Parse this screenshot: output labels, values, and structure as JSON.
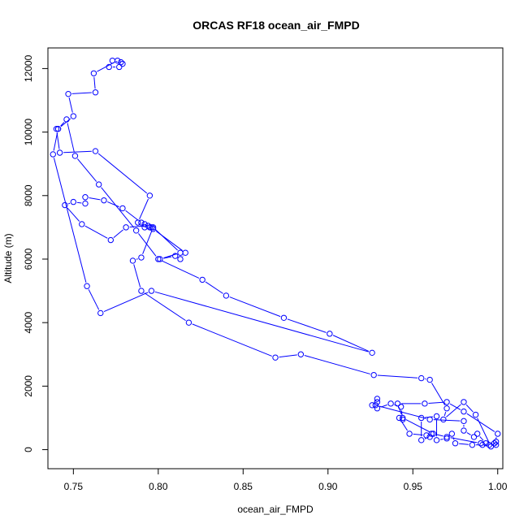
{
  "chart_data": {
    "type": "line",
    "title": "ORCAS RF18 ocean_air_FMPD",
    "xlabel": "ocean_air_FMPD",
    "ylabel": "Altitude (m)",
    "xlim": [
      0.735,
      1.003
    ],
    "ylim": [
      -600,
      12650
    ],
    "xticks": [
      0.75,
      0.8,
      0.85,
      0.9,
      0.95,
      1.0
    ],
    "xtick_labels": [
      "0.75",
      "0.80",
      "0.85",
      "0.90",
      "0.95",
      "1.00"
    ],
    "yticks": [
      0,
      2000,
      4000,
      6000,
      8000,
      10000,
      12000
    ],
    "ytick_labels": [
      "0",
      "2000",
      "4000",
      "6000",
      "8000",
      "10000",
      "12000"
    ],
    "grid": false,
    "legend": "none",
    "series_color": "#0000ff",
    "marker": "open-circle",
    "series": [
      {
        "name": "",
        "x": [
          0.999,
          0.999,
          0.993,
          0.988,
          0.986,
          0.98,
          0.98,
          0.96,
          0.928,
          0.929,
          0.929,
          0.926,
          0.929,
          0.937,
          0.943,
          0.944,
          0.942,
          0.948,
          0.958,
          0.961,
          0.96,
          0.955,
          0.955,
          0.964,
          0.964,
          0.97,
          0.973,
          0.975,
          0.985,
          0.991,
          0.995,
          0.998,
          1.0,
          0.98,
          0.97,
          0.957,
          0.941,
          0.944,
          0.962,
          0.97,
          0.99,
          0.996,
          0.987,
          0.98,
          0.968,
          0.97,
          0.96,
          0.955,
          0.927,
          0.884,
          0.869,
          0.818,
          0.79,
          0.785,
          0.79,
          0.797,
          0.813,
          0.801,
          0.81,
          0.813,
          0.816,
          0.797,
          0.794,
          0.781,
          0.772,
          0.755,
          0.745,
          0.75,
          0.757,
          0.757,
          0.768,
          0.779,
          0.79,
          0.792,
          0.796,
          0.795,
          0.792,
          0.788,
          0.795,
          0.763,
          0.742,
          0.74,
          0.741,
          0.746,
          0.751,
          0.765,
          0.787,
          0.8,
          0.826,
          0.84,
          0.874,
          0.901,
          0.926,
          0.796,
          0.766,
          0.758,
          0.738,
          0.741,
          0.75,
          0.747,
          0.763,
          0.762,
          0.776,
          0.773,
          0.778,
          0.779,
          0.777,
          0.771
        ],
        "y": [
          250,
          150,
          200,
          500,
          400,
          600,
          900,
          950,
          1400,
          1500,
          1600,
          1400,
          1300,
          1450,
          1350,
          950,
          1000,
          500,
          450,
          500,
          400,
          300,
          1000,
          1050,
          300,
          350,
          500,
          200,
          150,
          150,
          150,
          200,
          500,
          1200,
          1500,
          1450,
          1450,
          1000,
          500,
          400,
          200,
          100,
          1100,
          1500,
          950,
          1300,
          2200,
          2250,
          2350,
          3000,
          2900,
          4000,
          5000,
          5950,
          6050,
          7000,
          6200,
          6000,
          6100,
          6000,
          6200,
          6950,
          7050,
          7000,
          6600,
          7100,
          7700,
          7800,
          7750,
          7950,
          7850,
          7600,
          7150,
          7000,
          7000,
          7000,
          7100,
          7150,
          8000,
          9400,
          9350,
          10100,
          10100,
          10400,
          9250,
          8350,
          6900,
          6000,
          5350,
          4850,
          4150,
          3650,
          3050,
          5000,
          4300,
          5150,
          9300,
          10100,
          10500,
          11200,
          11250,
          11850,
          12250,
          12250,
          12200,
          12150,
          12050,
          12050
        ]
      }
    ]
  }
}
